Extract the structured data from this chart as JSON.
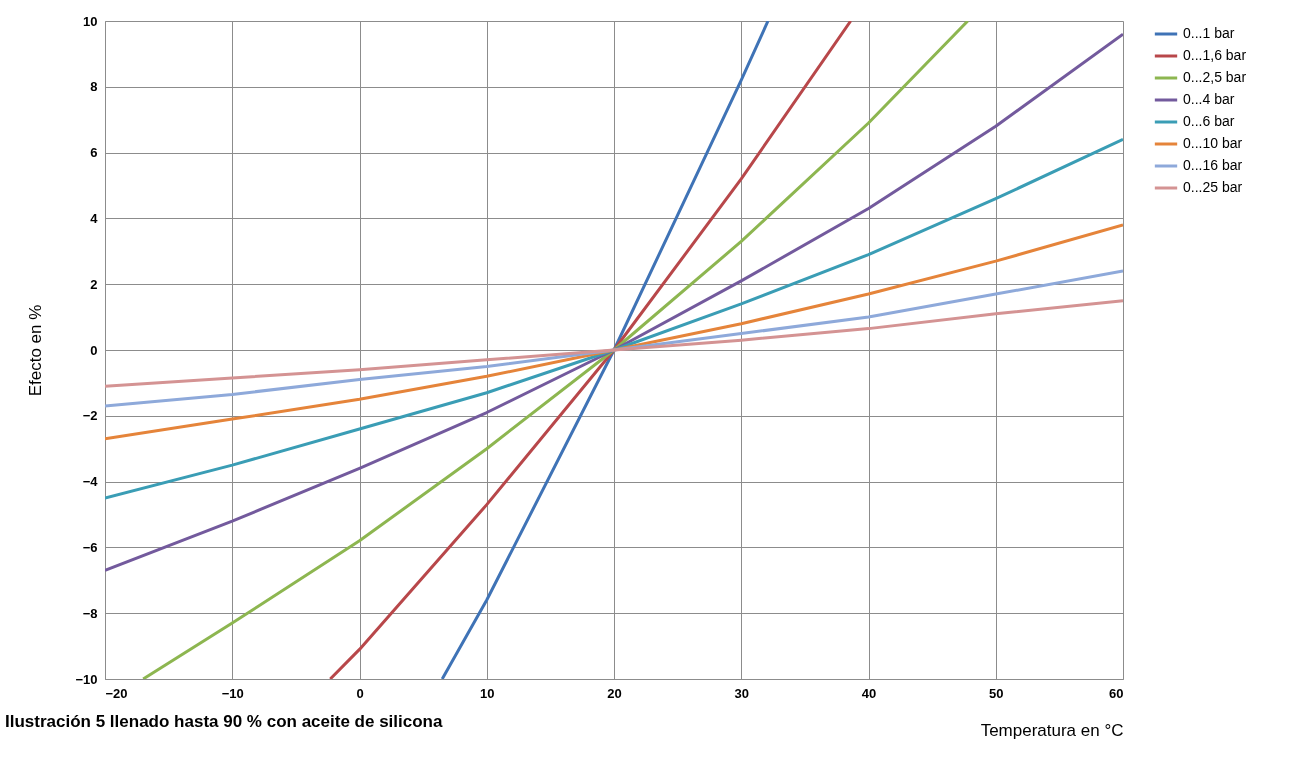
{
  "chart_data": {
    "type": "line",
    "xlabel": "Temperatura en °C",
    "ylabel": "Efecto en %",
    "annotations": [
      "Ilustración 5 llenado hasta 90 % con aceite de silicona"
    ],
    "xlim": [
      -20,
      60
    ],
    "ylim": [
      -10,
      10
    ],
    "xticks": [
      -20,
      -10,
      0,
      10,
      20,
      30,
      40,
      50,
      60
    ],
    "yticks": [
      -10,
      -8,
      -6,
      -4,
      -2,
      0,
      2,
      4,
      6,
      8,
      10
    ],
    "grid": true,
    "legend": "right",
    "marker": "none",
    "line_style": "solid",
    "series": [
      {
        "name": "0...1 bar",
        "color": "#3f73b6",
        "x": [
          6.5,
          10,
          20,
          30,
          32.1
        ],
        "values": [
          -10,
          -7.6,
          0,
          8.2,
          10
        ]
      },
      {
        "name": "0...1,6 bar",
        "color": "#b8474a",
        "x": [
          -2.3,
          0,
          10,
          20,
          30,
          38.6
        ],
        "values": [
          -10,
          -9.1,
          -4.7,
          0,
          5.2,
          10
        ]
      },
      {
        "name": "0...2,5 bar",
        "color": "#8db650",
        "x": [
          -17,
          -10,
          0,
          10,
          20,
          30,
          40,
          47.8
        ],
        "values": [
          -10,
          -8.3,
          -5.8,
          -3.0,
          0,
          3.3,
          6.9,
          10
        ]
      },
      {
        "name": "0...4 bar",
        "color": "#735a9d",
        "x": [
          -20,
          -10,
          0,
          10,
          20,
          30,
          40,
          50,
          60
        ],
        "values": [
          -6.7,
          -5.2,
          -3.6,
          -1.9,
          0,
          2.1,
          4.3,
          6.8,
          9.6
        ]
      },
      {
        "name": "0...6 bar",
        "color": "#3a9db5",
        "x": [
          -20,
          -10,
          0,
          10,
          20,
          30,
          40,
          50,
          60
        ],
        "values": [
          -4.5,
          -3.5,
          -2.4,
          -1.3,
          0,
          1.4,
          2.9,
          4.6,
          6.4
        ]
      },
      {
        "name": "0...10 bar",
        "color": "#e5843a",
        "x": [
          -20,
          -10,
          0,
          10,
          20,
          30,
          40,
          50,
          60
        ],
        "values": [
          -2.7,
          -2.1,
          -1.5,
          -0.8,
          0,
          0.8,
          1.7,
          2.7,
          3.8
        ]
      },
      {
        "name": "0...16 bar",
        "color": "#8ea9da",
        "x": [
          -20,
          -10,
          0,
          10,
          20,
          30,
          40,
          50,
          60
        ],
        "values": [
          -1.7,
          -1.35,
          -0.9,
          -0.5,
          0,
          0.5,
          1.0,
          1.7,
          2.4
        ]
      },
      {
        "name": "0...25 bar",
        "color": "#d49393",
        "x": [
          -20,
          -10,
          0,
          10,
          20,
          30,
          40,
          50,
          60
        ],
        "values": [
          -1.1,
          -0.85,
          -0.6,
          -0.3,
          0,
          0.3,
          0.65,
          1.1,
          1.5
        ]
      }
    ]
  }
}
